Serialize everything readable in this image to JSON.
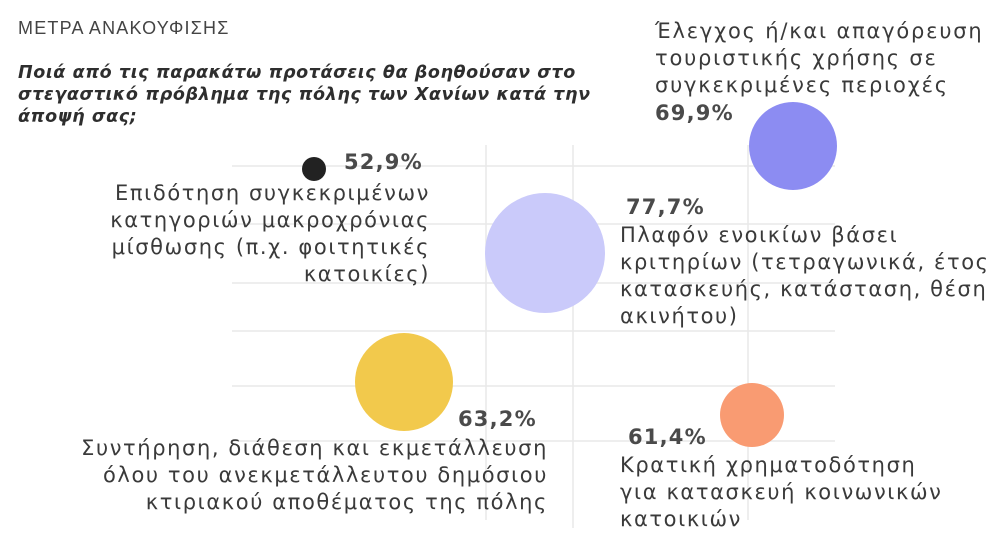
{
  "header": {
    "section_title": "ΜΕΤΡΑ ΑΝΑΚΟΥΦΙΣΗΣ",
    "question": "Ποιά από τις παρακάτω προτάσεις θα βοηθούσαν στο στεγαστικό πρόβλημα της πόλης των Χανίων κατά την άποψή σας;"
  },
  "chart_data": {
    "type": "scatter",
    "title": "Ποιά από τις παρακάτω προτάσεις θα βοηθούσαν στο στεγαστικό πρόβλημα της πόλης των Χανίων κατά την άποψή σας;",
    "grid": true,
    "unit": "%",
    "points": [
      {
        "key": "long_lease_subsidy",
        "label": "Επιδότηση συγκεκριμένων κατηγοριών μακροχρόνιας μίσθωσης (π.χ. φοιτητικές κατοικίες)",
        "value": 52.9,
        "value_label": "52,9%",
        "color": "#222222"
      },
      {
        "key": "tourism_restriction",
        "label": "Έλεγχος ή/και απαγόρευση τουριστικής χρήσης σε συγκεκριμένες περιοχές",
        "value": 69.9,
        "value_label": "69,9%",
        "color": "#8c8cf2"
      },
      {
        "key": "rent_cap",
        "label": "Πλαφόν ενοικίων βάσει κριτηρίων (τετραγωνικά, έτος κατασκευής, κατάσταση, θέση ακινήτου)",
        "value": 77.7,
        "value_label": "77,7%",
        "color": "#cacafa"
      },
      {
        "key": "public_building_stock",
        "label": "Συντήρηση, διάθεση και εκμετάλλευση όλου του ανεκμετάλλευτου δημόσιου κτιριακού αποθέματος της πόλης",
        "value": 63.2,
        "value_label": "63,2%",
        "color": "#f2c94c"
      },
      {
        "key": "social_housing_funding",
        "label": "Κρατική χρηματοδότηση για κατασκευή κοινωνικών κατοικιών",
        "value": 61.4,
        "value_label": "61,4%",
        "color": "#f99b72"
      }
    ]
  }
}
